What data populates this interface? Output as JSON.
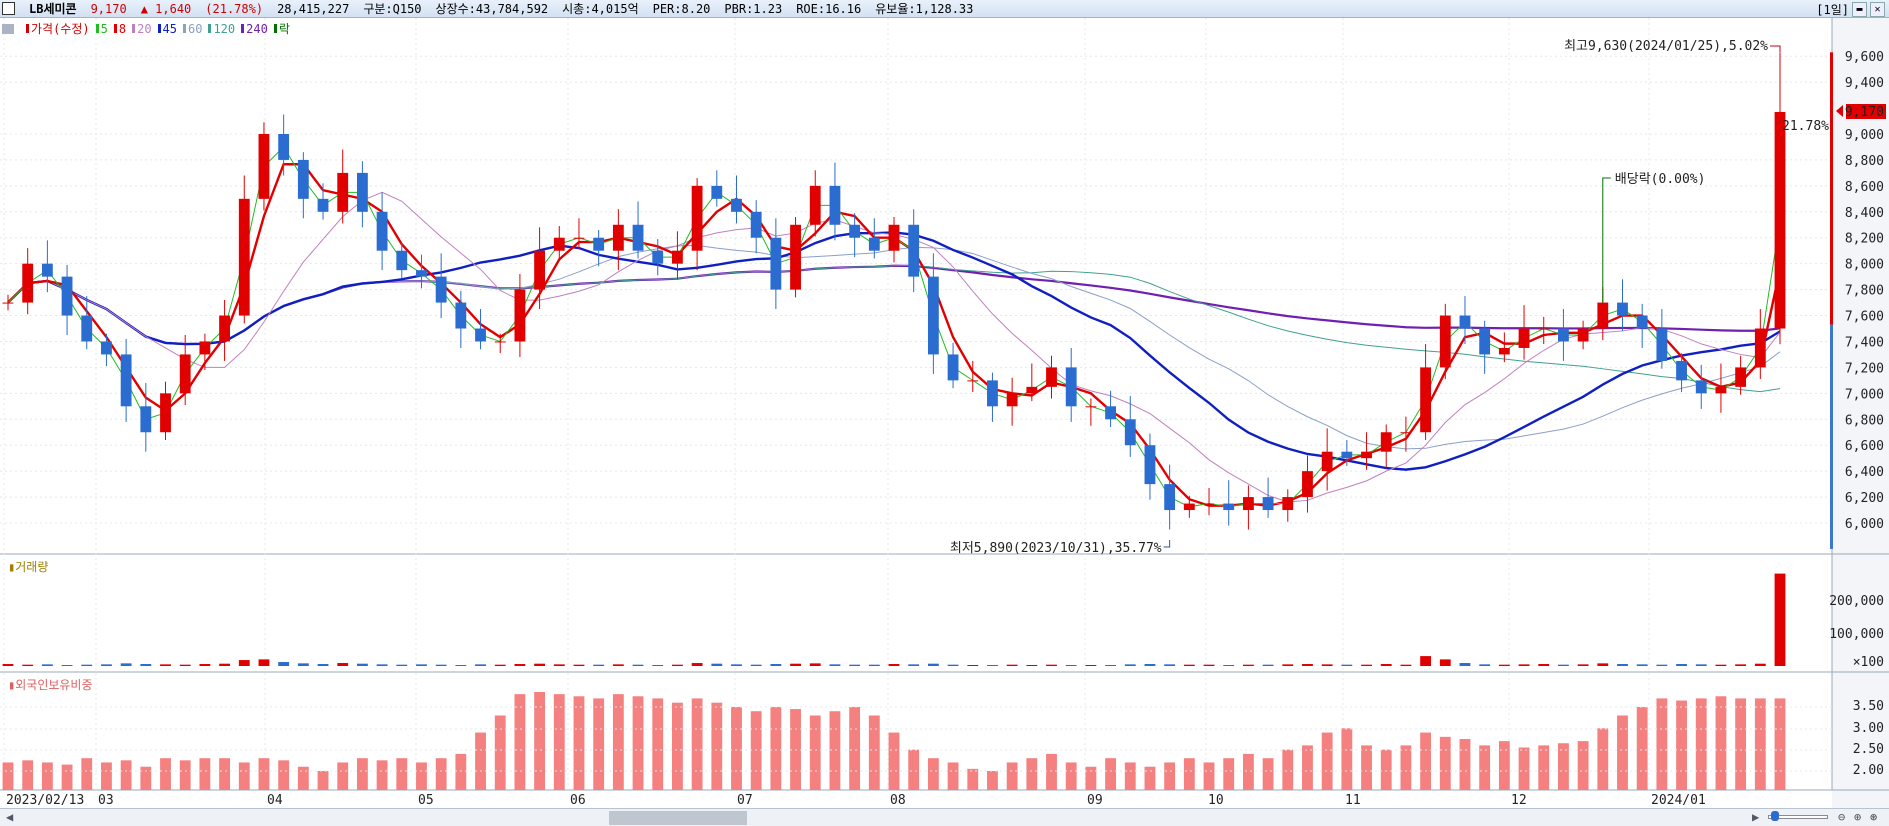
{
  "header": {
    "name": "LB세미콘",
    "price": "9,170",
    "change": "▲ 1,640",
    "change_pct": "(21.78%)",
    "volume": "28,415,227",
    "market": "구분:Q150",
    "shares": "상장수:43,784,592",
    "mktcap": "시총:4,015억",
    "per": "PER:8.20",
    "pbr": "PBR:1.23",
    "roe": "ROE:16.16",
    "float_ratio": "유보율:1,128.33",
    "period": "[1일]"
  },
  "legend": [
    {
      "label": "가격(수정)",
      "color": "#d00000"
    },
    {
      "label": "5",
      "color": "#22bb22"
    },
    {
      "label": "8",
      "color": "#e00000"
    },
    {
      "label": "20",
      "color": "#c080c0"
    },
    {
      "label": "45",
      "color": "#1020c0"
    },
    {
      "label": "60",
      "color": "#8aa0c8"
    },
    {
      "label": "120",
      "color": "#40a090"
    },
    {
      "label": "240",
      "color": "#7020b0"
    },
    {
      "label": "락",
      "color": "#007000"
    }
  ],
  "annotations": {
    "high": "최고9,630(2024/01/25),5.02%",
    "low": "최저5,890(2023/10/31),35.77%",
    "dividend": "배당락(0.00%)",
    "last_price": "9,170",
    "last_pct": "21.78%"
  },
  "price_axis": [
    "9,600",
    "9,400",
    "9,000",
    "8,800",
    "8,600",
    "8,400",
    "8,200",
    "8,000",
    "7,800",
    "7,600",
    "7,400",
    "7,200",
    "7,000",
    "6,800",
    "6,600",
    "6,400",
    "6,200",
    "6,000"
  ],
  "volume_panel": {
    "title": "거래량",
    "axis": [
      "200,000",
      "100,000",
      "×100"
    ]
  },
  "foreign_panel": {
    "title": "외국인보유비중",
    "axis": [
      "3.50",
      "3.00",
      "2.50",
      "2.00"
    ]
  },
  "date_axis": [
    "2023/02/13",
    "03",
    "04",
    "05",
    "06",
    "07",
    "08",
    "09",
    "10",
    "11",
    "12",
    "2024/01"
  ],
  "colors": {
    "up": "#e00000",
    "down": "#2a6cd0",
    "foreign": "#f48080"
  },
  "chart_data": {
    "type": "candlestick",
    "closes": [
      7700,
      8000,
      7900,
      7600,
      7400,
      7300,
      6900,
      6700,
      7000,
      7300,
      7400,
      7600,
      8500,
      9000,
      8800,
      8500,
      8400,
      8700,
      8400,
      8100,
      7950,
      7900,
      7700,
      7500,
      7400,
      7400,
      7800,
      8100,
      8200,
      8200,
      8100,
      8300,
      8100,
      8000,
      8100,
      8600,
      8500,
      8400,
      8200,
      7800,
      8300,
      8600,
      8300,
      8200,
      8100,
      8300,
      7900,
      7300,
      7100,
      7100,
      6900,
      7000,
      7050,
      7200,
      6900,
      6900,
      6800,
      6600,
      6300,
      6100,
      6150,
      6150,
      6100,
      6200,
      6100,
      6200,
      6400,
      6550,
      6500,
      6550,
      6700,
      6700,
      7200,
      7600,
      7500,
      7300,
      7350,
      7500,
      7500,
      7400,
      7500,
      7700,
      7600,
      7500,
      7250,
      7100,
      7000,
      7050,
      7200,
      7500,
      9170
    ],
    "volume_x100": [
      60,
      40,
      50,
      30,
      40,
      50,
      80,
      60,
      50,
      40,
      60,
      70,
      180,
      200,
      120,
      80,
      60,
      90,
      70,
      50,
      40,
      50,
      40,
      30,
      50,
      40,
      60,
      70,
      50,
      40,
      40,
      50,
      40,
      30,
      40,
      90,
      70,
      50,
      40,
      60,
      70,
      80,
      50,
      40,
      40,
      60,
      50,
      70,
      40,
      30,
      30,
      40,
      30,
      40,
      30,
      30,
      30,
      50,
      60,
      50,
      40,
      40,
      30,
      40,
      40,
      50,
      60,
      50,
      40,
      40,
      60,
      40,
      300,
      200,
      90,
      50,
      40,
      50,
      60,
      40,
      50,
      80,
      60,
      50,
      40,
      60,
      50,
      40,
      50,
      70,
      2800
    ],
    "foreign_pct": [
      2.2,
      2.25,
      2.2,
      2.15,
      2.3,
      2.2,
      2.25,
      2.1,
      2.3,
      2.25,
      2.3,
      2.3,
      2.2,
      2.3,
      2.25,
      2.1,
      2.0,
      2.2,
      2.3,
      2.25,
      2.3,
      2.2,
      2.3,
      2.4,
      2.9,
      3.3,
      3.8,
      3.85,
      3.8,
      3.75,
      3.7,
      3.8,
      3.75,
      3.7,
      3.6,
      3.7,
      3.6,
      3.5,
      3.4,
      3.5,
      3.45,
      3.3,
      3.4,
      3.5,
      3.3,
      2.9,
      2.5,
      2.3,
      2.2,
      2.05,
      2.0,
      2.2,
      2.3,
      2.4,
      2.2,
      2.1,
      2.3,
      2.2,
      2.1,
      2.2,
      2.3,
      2.2,
      2.3,
      2.4,
      2.3,
      2.5,
      2.6,
      2.9,
      3.0,
      2.6,
      2.5,
      2.6,
      2.9,
      2.8,
      2.75,
      2.6,
      2.7,
      2.55,
      2.6,
      2.65,
      2.7,
      3.0,
      3.3,
      3.5,
      3.7,
      3.65,
      3.7,
      3.75,
      3.7,
      3.7,
      3.7
    ],
    "ylim": [
      5800,
      9800
    ],
    "ma_labels": [
      "5",
      "8",
      "20",
      "45",
      "60",
      "120",
      "240"
    ]
  }
}
